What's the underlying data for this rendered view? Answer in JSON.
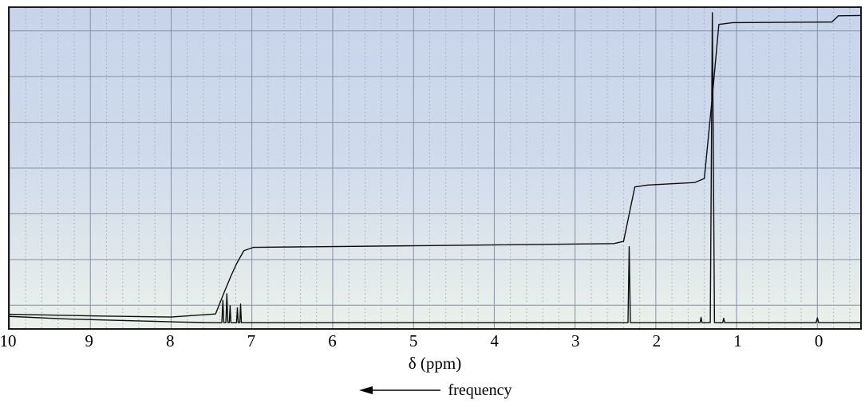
{
  "figure": {
    "xlabel": "δ (ppm)",
    "frequency_label": "frequency"
  },
  "chart_data": {
    "type": "line",
    "description": "1H NMR spectrum with cumulative integration trace, chemical shift axis reversed (10 to ~-0.5 ppm)",
    "xlabel": "δ (ppm)",
    "ylabel": "",
    "x_axis": {
      "max_ppm": 10,
      "min_ppm": -0.53,
      "reversed": true,
      "major_tick_step": 1,
      "minor_tick_step": 0.2,
      "ticks": [
        10,
        9,
        8,
        7,
        6,
        5,
        4,
        3,
        2,
        1,
        0
      ]
    },
    "style": {
      "plot_bg_top": "#c8d4ea",
      "plot_bg_mid": "#cfdaec",
      "plot_bg_bottom": "#ebf1ea",
      "grid_major": "#8290aa",
      "grid_minor": "#9aa7c2",
      "border": "#1b1b1b",
      "trace": "#0d0d0d"
    },
    "baseline_drift": [
      {
        "ppm": 10.0,
        "lift": 0.02
      },
      {
        "ppm": 9.3,
        "lift": 0.012
      },
      {
        "ppm": 8.5,
        "lift": 0.006
      },
      {
        "ppm": 7.9,
        "lift": 0.002
      },
      {
        "ppm": 7.5,
        "lift": 0.0
      },
      {
        "ppm": -0.53,
        "lift": 0.0
      }
    ],
    "peaks": [
      {
        "ppm": 7.36,
        "height": 0.072,
        "half_width_ppm": 0.012
      },
      {
        "ppm": 7.31,
        "height": 0.093,
        "half_width_ppm": 0.012
      },
      {
        "ppm": 7.27,
        "height": 0.055,
        "half_width_ppm": 0.01
      },
      {
        "ppm": 7.18,
        "height": 0.048,
        "half_width_ppm": 0.01
      },
      {
        "ppm": 7.14,
        "height": 0.06,
        "half_width_ppm": 0.01
      },
      {
        "ppm": 2.33,
        "height": 0.245,
        "half_width_ppm": 0.015
      },
      {
        "ppm": 1.44,
        "height": 0.017,
        "half_width_ppm": 0.012
      },
      {
        "ppm": 1.3,
        "height": 1.0,
        "half_width_ppm": 0.026
      },
      {
        "ppm": 1.16,
        "height": 0.014,
        "half_width_ppm": 0.012
      },
      {
        "ppm": 0.0,
        "height": 0.015,
        "half_width_ppm": 0.015
      }
    ],
    "integration": [
      {
        "ppm": 10.0,
        "value": 0.027
      },
      {
        "ppm": 9.0,
        "value": 0.022
      },
      {
        "ppm": 8.0,
        "value": 0.018
      },
      {
        "ppm": 7.45,
        "value": 0.028
      },
      {
        "ppm": 7.34,
        "value": 0.1
      },
      {
        "ppm": 7.26,
        "value": 0.15
      },
      {
        "ppm": 7.19,
        "value": 0.19
      },
      {
        "ppm": 7.1,
        "value": 0.232
      },
      {
        "ppm": 6.98,
        "value": 0.243
      },
      {
        "ppm": 5.0,
        "value": 0.248
      },
      {
        "ppm": 2.52,
        "value": 0.255
      },
      {
        "ppm": 2.4,
        "value": 0.262
      },
      {
        "ppm": 2.26,
        "value": 0.438
      },
      {
        "ppm": 2.1,
        "value": 0.444
      },
      {
        "ppm": 1.52,
        "value": 0.452
      },
      {
        "ppm": 1.4,
        "value": 0.465
      },
      {
        "ppm": 1.3,
        "value": 0.73
      },
      {
        "ppm": 1.22,
        "value": 0.962
      },
      {
        "ppm": 1.05,
        "value": 0.968
      },
      {
        "ppm": -0.18,
        "value": 0.97
      },
      {
        "ppm": -0.26,
        "value": 0.99
      },
      {
        "ppm": -0.53,
        "value": 0.991
      }
    ]
  }
}
